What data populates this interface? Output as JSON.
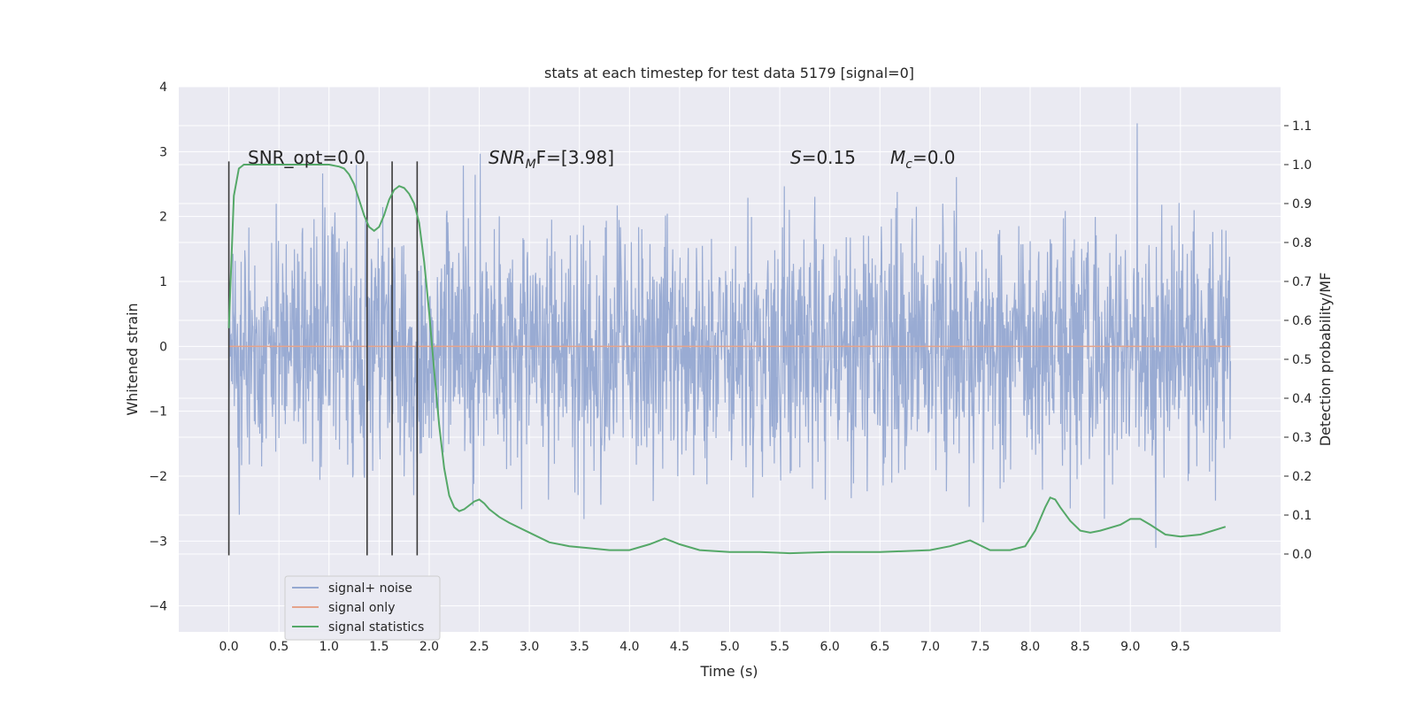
{
  "chart_data": {
    "type": "line",
    "title": "stats at each timestep for test data 5179 [signal=0]",
    "xlabel": "Time (s)",
    "ylabel": "Whitened strain",
    "y2label": "Detection probability/MF",
    "xlim": [
      -0.5,
      10.5
    ],
    "ylim": [
      -4.4,
      4.0
    ],
    "y2lim": [
      -0.2,
      1.2
    ],
    "x_ticks": [
      "0.0",
      "0.5",
      "1.0",
      "1.5",
      "2.0",
      "2.5",
      "3.0",
      "3.5",
      "4.0",
      "4.5",
      "5.0",
      "5.5",
      "6.0",
      "6.5",
      "7.0",
      "7.5",
      "8.0",
      "8.5",
      "9.0",
      "9.5"
    ],
    "y_ticks": [
      "4",
      "3",
      "2",
      "1",
      "0",
      "−1",
      "−2",
      "−3",
      "−4"
    ],
    "y2_ticks": [
      "1.1",
      "1.0",
      "0.9",
      "0.8",
      "0.7",
      "0.6",
      "0.5",
      "0.4",
      "0.3",
      "0.2",
      "0.1",
      "0.0"
    ],
    "grid": true,
    "legend_position": "lower-left",
    "annotations": {
      "snr_opt": "SNR_opt=0.0",
      "snr_mf_label": "SNR",
      "snr_mf_sub": "M",
      "snr_mf_rest": "F=[3.98]",
      "s_label": "S",
      "s_rest": "=0.15",
      "mc_label": "M",
      "mc_sub": "c",
      "mc_rest": "=0.0"
    },
    "vertical_markers_x": [
      0.0,
      1.38,
      1.63,
      1.88
    ],
    "series": [
      {
        "name": "signal+ noise",
        "color": "#95a8d1",
        "noise_envelope": [
          -3.6,
          3.6
        ],
        "x_range": [
          0.0,
          10.0
        ]
      },
      {
        "name": "signal only",
        "color": "#e5a48b",
        "values_constant": 0.0,
        "x_range": [
          0.0,
          10.0
        ]
      },
      {
        "name": "signal statistics",
        "color": "#55a868",
        "axis": "right",
        "x": [
          0.0,
          0.05,
          0.1,
          0.15,
          0.2,
          0.3,
          0.4,
          0.5,
          0.6,
          0.7,
          0.8,
          0.9,
          1.0,
          1.1,
          1.15,
          1.2,
          1.25,
          1.3,
          1.35,
          1.4,
          1.45,
          1.5,
          1.55,
          1.6,
          1.65,
          1.7,
          1.75,
          1.8,
          1.85,
          1.9,
          1.95,
          2.0,
          2.05,
          2.1,
          2.15,
          2.2,
          2.25,
          2.3,
          2.35,
          2.4,
          2.45,
          2.5,
          2.55,
          2.6,
          2.7,
          2.8,
          3.0,
          3.2,
          3.4,
          3.6,
          3.8,
          4.0,
          4.2,
          4.35,
          4.5,
          4.7,
          5.0,
          5.3,
          5.6,
          6.0,
          6.5,
          7.0,
          7.2,
          7.4,
          7.6,
          7.8,
          7.95,
          8.05,
          8.15,
          8.2,
          8.25,
          8.3,
          8.4,
          8.5,
          8.6,
          8.7,
          8.9,
          9.0,
          9.1,
          9.2,
          9.35,
          9.5,
          9.7,
          9.95
        ],
        "y": [
          0.58,
          0.92,
          0.99,
          1.0,
          1.0,
          1.0,
          1.0,
          1.0,
          1.0,
          1.0,
          1.0,
          1.0,
          1.0,
          0.995,
          0.99,
          0.975,
          0.95,
          0.91,
          0.87,
          0.84,
          0.83,
          0.84,
          0.87,
          0.91,
          0.935,
          0.945,
          0.94,
          0.925,
          0.9,
          0.85,
          0.75,
          0.62,
          0.47,
          0.33,
          0.22,
          0.15,
          0.12,
          0.11,
          0.115,
          0.125,
          0.135,
          0.14,
          0.13,
          0.115,
          0.095,
          0.08,
          0.055,
          0.03,
          0.02,
          0.015,
          0.01,
          0.01,
          0.025,
          0.04,
          0.025,
          0.01,
          0.005,
          0.005,
          0.002,
          0.005,
          0.005,
          0.01,
          0.02,
          0.035,
          0.01,
          0.01,
          0.02,
          0.06,
          0.12,
          0.145,
          0.14,
          0.12,
          0.085,
          0.06,
          0.055,
          0.06,
          0.075,
          0.09,
          0.09,
          0.075,
          0.05,
          0.045,
          0.05,
          0.07
        ]
      }
    ]
  }
}
